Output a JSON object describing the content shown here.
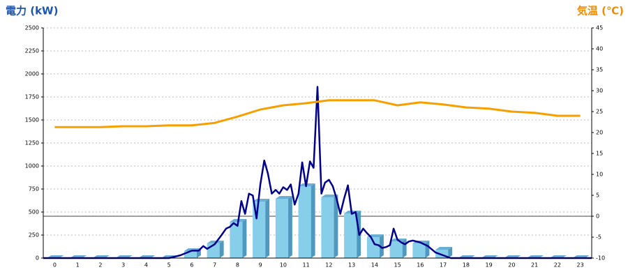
{
  "chart_data": {
    "type": "bar",
    "y_label": "電力 (kW)",
    "y2_label": "気温 (℃)",
    "categories": [
      "0",
      "1",
      "2",
      "3",
      "4",
      "5",
      "6",
      "7",
      "8",
      "9",
      "10",
      "11",
      "12",
      "13",
      "14",
      "15",
      "16",
      "17",
      "18",
      "19",
      "20",
      "21",
      "22",
      "23"
    ],
    "xlim": [
      -0.5,
      23.5
    ],
    "ylim": [
      0,
      2500
    ],
    "yticks": [
      0,
      250,
      500,
      750,
      1000,
      1250,
      1500,
      1750,
      2000,
      2250,
      2500
    ],
    "y2lim": [
      -10,
      45
    ],
    "y2ticks": [
      -10,
      -5,
      0,
      5,
      10,
      15,
      20,
      25,
      30,
      35,
      40,
      45
    ],
    "grid": true,
    "series": [
      {
        "type": "bar",
        "color": "#87ceeb",
        "values": [
          0,
          0,
          0,
          0,
          0,
          0,
          76,
          160,
          394,
          614,
          644,
          780,
          660,
          485,
          227,
          182,
          160,
          91,
          0,
          0,
          0,
          0,
          0,
          0
        ]
      },
      {
        "type": "line",
        "color": "#00008b",
        "x": [
          -0.5,
          5,
          5.5,
          6,
          6.3,
          6.5,
          6.67,
          7,
          7.3,
          7.5,
          7.67,
          7.83,
          8,
          8.17,
          8.33,
          8.5,
          8.67,
          8.83,
          9,
          9.17,
          9.33,
          9.5,
          9.67,
          9.83,
          10,
          10.17,
          10.33,
          10.5,
          10.67,
          10.83,
          11,
          11.17,
          11.33,
          11.5,
          11.67,
          11.83,
          12,
          12.17,
          12.33,
          12.5,
          12.67,
          12.83,
          13,
          13.17,
          13.33,
          13.5,
          13.67,
          13.83,
          14,
          14.17,
          14.33,
          14.5,
          14.67,
          14.83,
          15,
          15.17,
          15.33,
          15.5,
          15.67,
          15.83,
          16,
          16.33,
          16.67,
          17,
          17.33,
          23.5
        ],
        "values": [
          0,
          0,
          30,
          80,
          80,
          130,
          100,
          150,
          250,
          320,
          340,
          380,
          350,
          620,
          480,
          700,
          680,
          430,
          800,
          1060,
          920,
          700,
          740,
          700,
          770,
          740,
          800,
          580,
          700,
          1040,
          780,
          1050,
          980,
          1860,
          700,
          820,
          850,
          780,
          650,
          480,
          650,
          790,
          480,
          500,
          250,
          320,
          270,
          230,
          150,
          140,
          110,
          120,
          140,
          320,
          200,
          170,
          150,
          180,
          190,
          180,
          170,
          130,
          60,
          30,
          0,
          0
        ]
      },
      {
        "type": "line",
        "color": "#f5a000",
        "axis": "y2",
        "values": [
          21.3,
          21.3,
          21.3,
          21.5,
          21.5,
          21.7,
          21.7,
          22.3,
          23.8,
          25.5,
          26.5,
          27,
          27.7,
          27.7,
          27.7,
          26.5,
          27.2,
          26.7,
          26,
          25.7,
          25,
          24.7,
          24,
          24
        ]
      }
    ]
  }
}
